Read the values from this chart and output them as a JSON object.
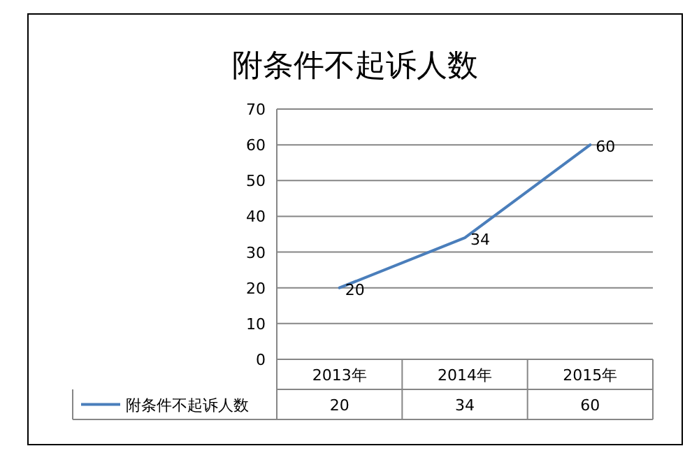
{
  "chart_data": {
    "type": "line",
    "title": "附条件不起诉人数",
    "categories": [
      "2013年",
      "2014年",
      "2015年"
    ],
    "series": [
      {
        "name": "附条件不起诉人数",
        "color": "#4a7ebb",
        "values": [
          20,
          34,
          60
        ],
        "value_labels": [
          "20",
          "34",
          "60"
        ]
      }
    ],
    "annotations": [
      {
        "text": "20",
        "x": "2013年",
        "y": 20
      },
      {
        "text": "34",
        "x": "2014年",
        "y": 34
      },
      {
        "text": "60",
        "x": "2015年",
        "y": 60
      }
    ],
    "ylim": [
      0,
      70
    ],
    "yticks": [
      0,
      10,
      20,
      30,
      40,
      50,
      60,
      70
    ],
    "grid": "y",
    "legend": "bottom"
  }
}
